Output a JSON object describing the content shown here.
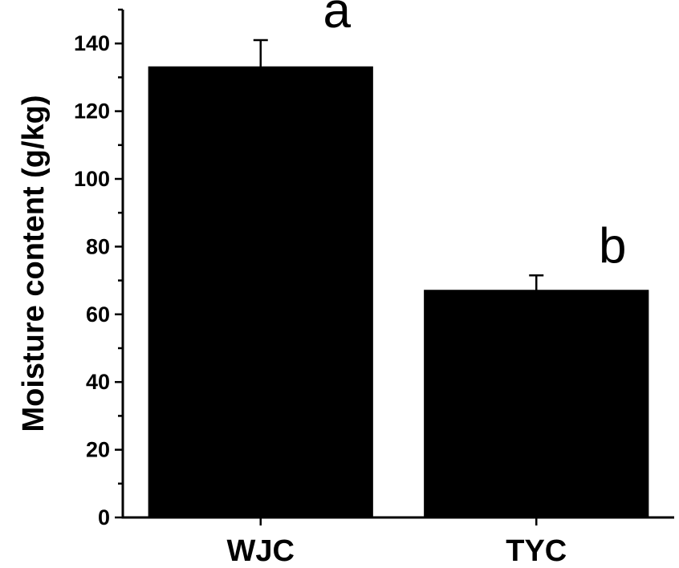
{
  "chart_data": {
    "type": "bar",
    "categories": [
      "WJC",
      "TYC"
    ],
    "values": [
      133,
      67
    ],
    "errors": [
      8,
      4.5
    ],
    "significance_letters": [
      "a",
      "b"
    ],
    "ylabel": "Moisture content (g/kg)",
    "xlabel": "",
    "ylim": [
      0,
      150
    ],
    "yticks": [
      0,
      20,
      40,
      60,
      80,
      100,
      120,
      140
    ],
    "colors": {
      "bar": "#000000",
      "axis": "#000000"
    },
    "grid": false,
    "legend": "none"
  }
}
